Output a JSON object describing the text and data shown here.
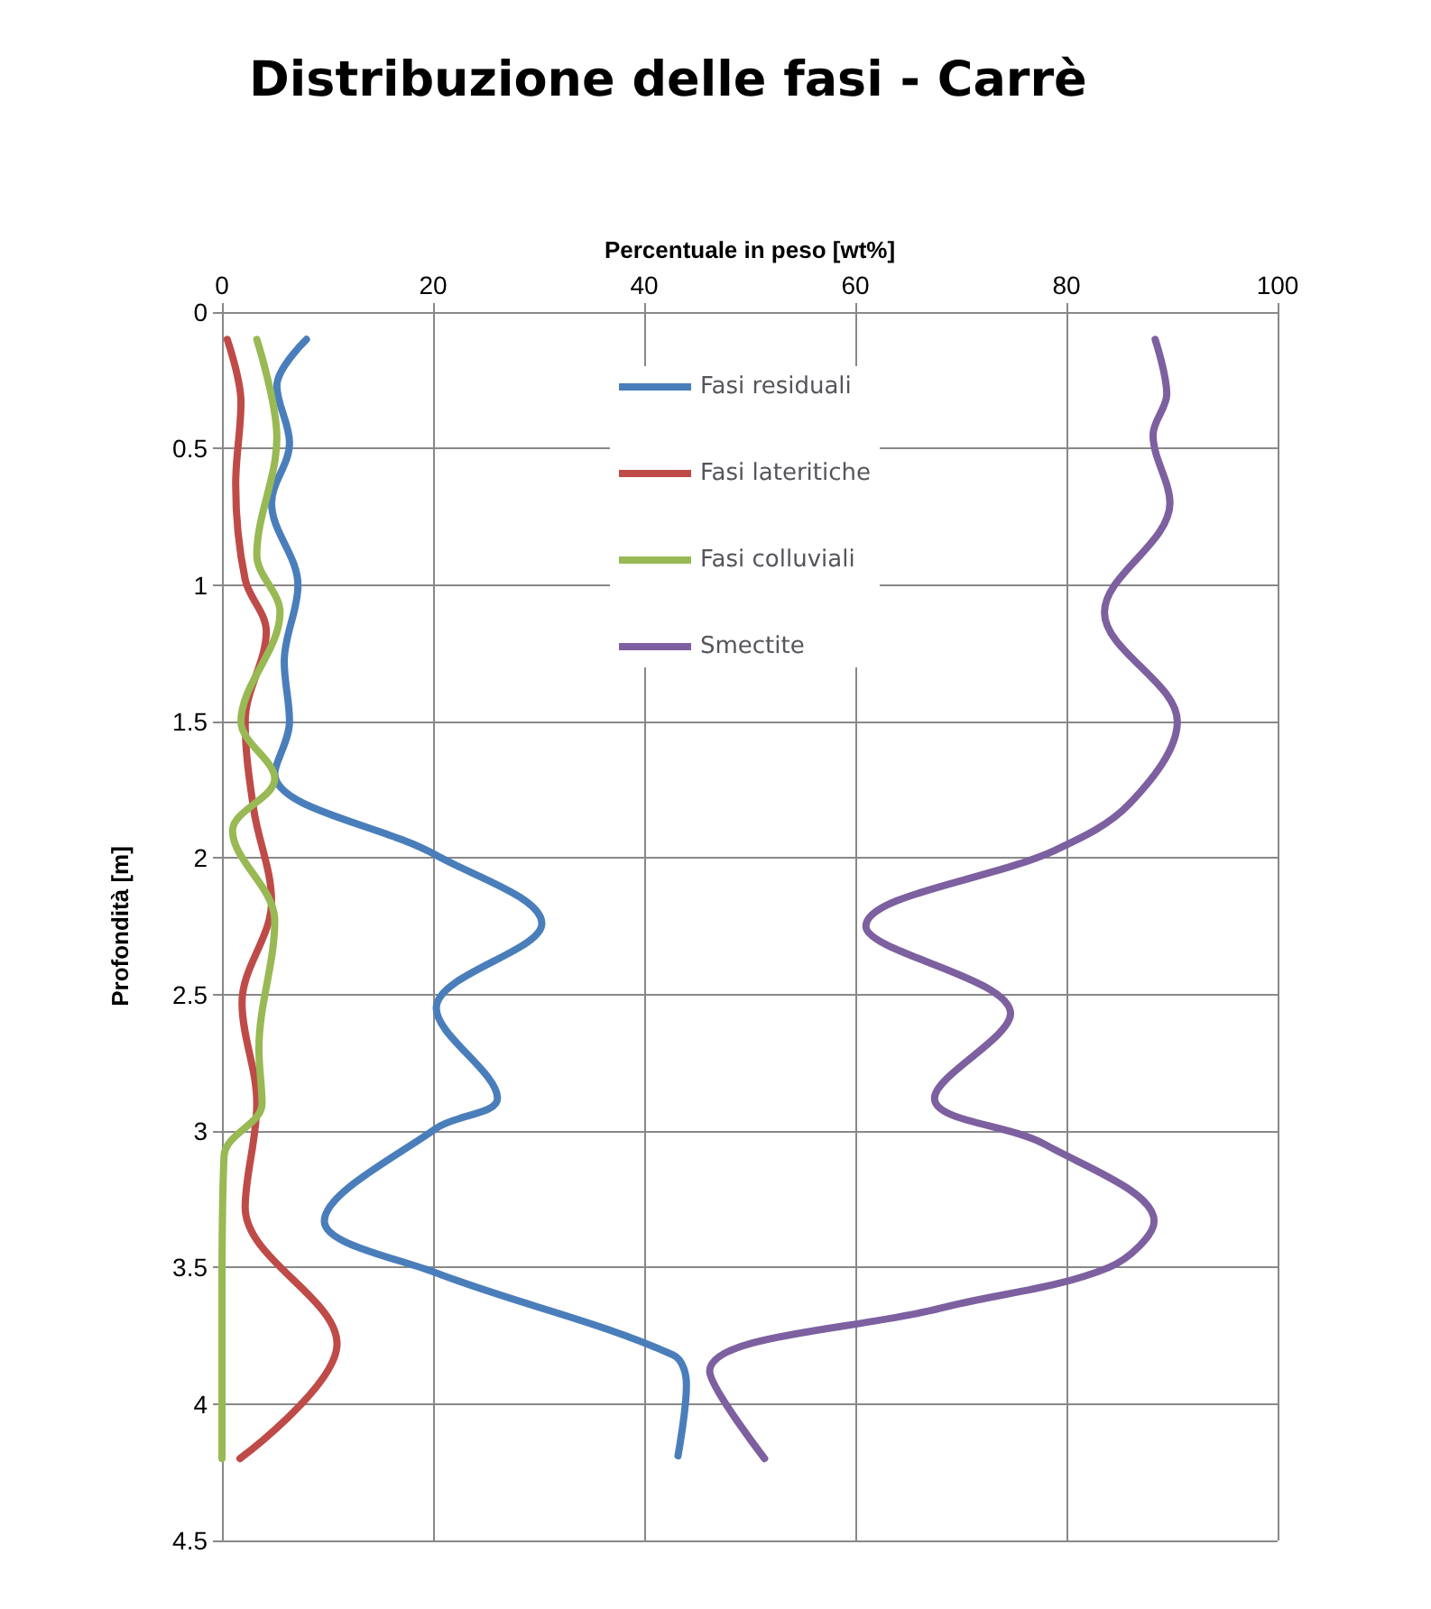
{
  "chart_data": {
    "type": "line",
    "title": "Distribuzione delle fasi - Carrè",
    "xlabel": "Percentuale in peso [wt%]",
    "ylabel": "Profondità [m]",
    "xlim": [
      0,
      100
    ],
    "xticks": [
      0,
      20,
      40,
      60,
      80,
      100
    ],
    "ylim": [
      4.5,
      0
    ],
    "yticks": [
      0,
      0.5,
      1,
      1.5,
      2,
      2.5,
      3,
      3.5,
      4,
      4.5
    ],
    "grid": true,
    "legend": "top",
    "marker": "none",
    "line_style": "solid",
    "series": [
      {
        "name": "Fasi residuali",
        "color": "#4a7ebb",
        "x": [
          8.0,
          5.2,
          6.4,
          4.7,
          7.2,
          5.9,
          6.4,
          5.0,
          20.3,
          30.3,
          20.3,
          26.1,
          20.3,
          9.7,
          20.3,
          42.7,
          44.0,
          43.2
        ],
        "values": [
          0.1,
          0.27,
          0.48,
          0.7,
          1.0,
          1.28,
          1.5,
          1.69,
          1.99,
          2.24,
          2.55,
          2.88,
          2.99,
          3.33,
          3.52,
          3.82,
          3.93,
          4.19
        ]
      },
      {
        "name": "Fasi lateritiche",
        "color": "#be4b48",
        "x": [
          0.5,
          1.8,
          1.3,
          2.2,
          4.2,
          2.2,
          3.0,
          4.7,
          1.9,
          3.3,
          2.2,
          10.9,
          1.7
        ],
        "values": [
          0.1,
          0.33,
          0.63,
          0.98,
          1.17,
          1.5,
          1.82,
          2.16,
          2.53,
          2.9,
          3.28,
          3.78,
          4.2
        ]
      },
      {
        "name": "Fasi colluviali",
        "color": "#98b954",
        "x": [
          3.3,
          5.2,
          3.3,
          5.5,
          1.8,
          5.0,
          1.0,
          5.0,
          3.5,
          3.8,
          0.2,
          0,
          0
        ],
        "values": [
          0.1,
          0.46,
          0.89,
          1.1,
          1.5,
          1.71,
          1.9,
          2.23,
          2.7,
          2.9,
          3.09,
          3.6,
          4.2
        ]
      },
      {
        "name": "Smectite",
        "color": "#7d60a0",
        "x": [
          88.4,
          89.5,
          88.2,
          89.8,
          83.6,
          90.5,
          86,
          79,
          61,
          74.7,
          67.5,
          78,
          88.3,
          84,
          68,
          46.2,
          51.4
        ],
        "values": [
          0.1,
          0.3,
          0.45,
          0.7,
          1.1,
          1.5,
          1.8,
          1.97,
          2.25,
          2.57,
          2.88,
          3.05,
          3.33,
          3.5,
          3.65,
          3.88,
          4.2
        ]
      }
    ]
  }
}
